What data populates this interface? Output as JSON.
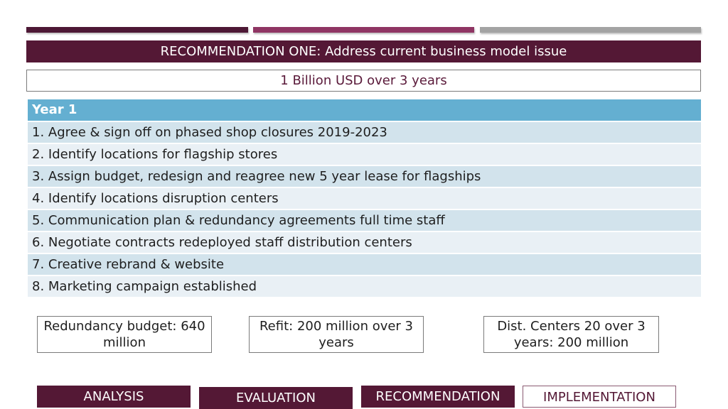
{
  "slide": {
    "title": "RECOMMENDATION ONE: Address current business model issue",
    "budget_total": "1 Billion USD over 3 years",
    "table": {
      "header": "Year 1",
      "rows": [
        "1. Agree & sign off on phased shop closures 2019-2023",
        "2. Identify locations for flagship stores",
        "3. Assign budget, redesign and reagree new 5 year lease for flagships",
        "4. Identify locations disruption centers",
        "5. Communication plan & redundancy agreements full time staff",
        "6. Negotiate contracts redeployed staff distribution centers",
        "7. Creative rebrand & website",
        "8. Marketing campaign established"
      ]
    },
    "cards": [
      "Redundancy budget: 640 million",
      "Refit: 200 million over 3 years",
      "Dist. Centers 20 over 3 years: 200 million"
    ],
    "nav": [
      "ANALYSIS",
      "EVALUATION",
      "RECOMMENDATION",
      "IMPLEMENTATION"
    ]
  },
  "colors": {
    "primary": "#541835",
    "accent": "#8f3563",
    "gray": "#a3a3a3",
    "table_header": "#64afd1",
    "row_dark": "#d2e3ec",
    "row_light": "#e9f0f5"
  }
}
